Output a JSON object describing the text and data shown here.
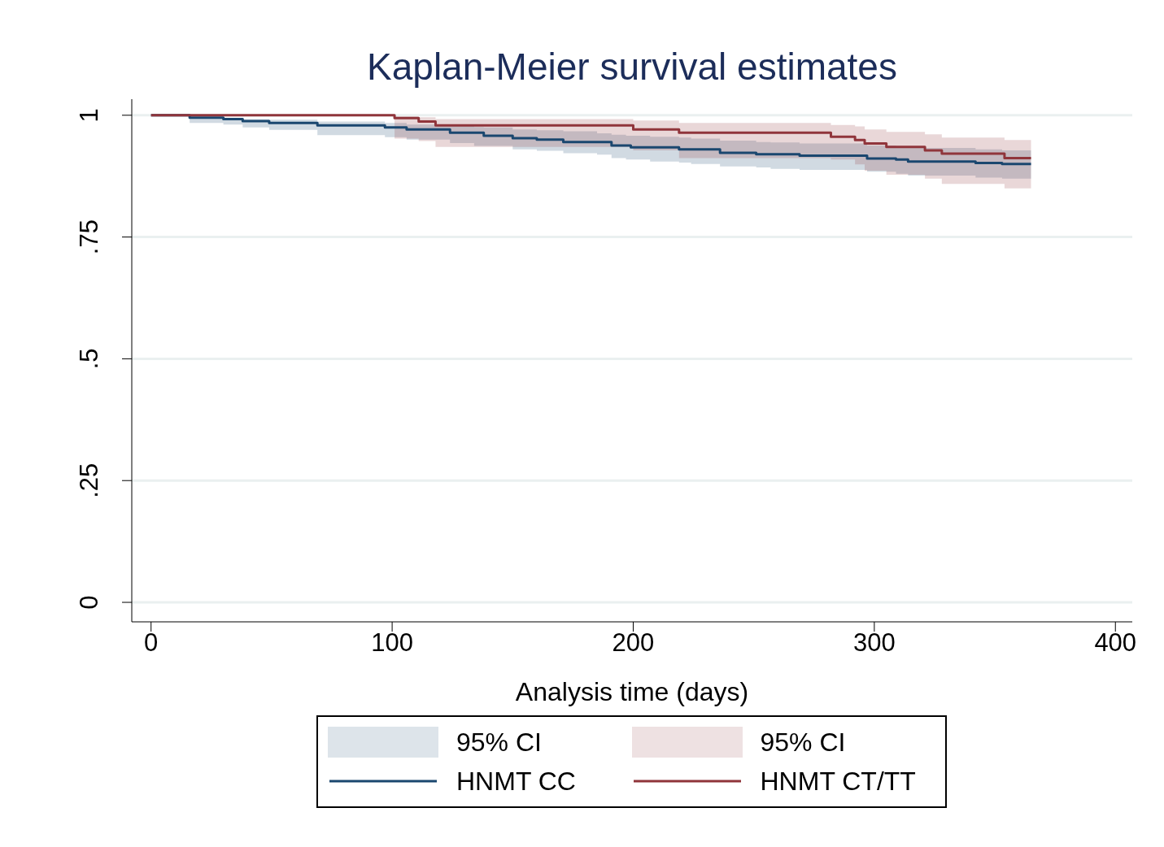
{
  "chart_data": {
    "type": "step",
    "title": "Kaplan-Meier survival estimates",
    "xlabel": "Analysis time (days)",
    "xlim": [
      -8,
      407
    ],
    "xticks": [
      0,
      100,
      200,
      300,
      400
    ],
    "ylim": [
      -0.04,
      1.033
    ],
    "yticks": [
      0,
      {
        "value": 0.25,
        "label": ".25"
      },
      {
        "value": 0.5,
        "label": ".5"
      },
      {
        "value": 0.75,
        "label": ".75"
      },
      1
    ],
    "grid": "y",
    "legend": "bottom",
    "annotations": [
      "95% CI",
      "95% CI"
    ],
    "series": [
      {
        "name": "HNMT CC",
        "color": "#1a476f",
        "x": [
          0,
          16,
          30,
          38,
          49,
          69,
          97,
          106,
          124,
          134,
          138,
          150,
          160,
          171,
          185,
          191,
          197,
          199,
          207,
          219,
          224,
          236,
          251,
          257,
          269,
          297,
          309,
          314,
          342,
          353,
          365
        ],
        "values": [
          1,
          0.995,
          0.992,
          0.988,
          0.984,
          0.979,
          0.975,
          0.971,
          0.964,
          0.964,
          0.958,
          0.953,
          0.95,
          0.945,
          0.945,
          0.938,
          0.938,
          0.934,
          0.934,
          0.93,
          0.93,
          0.923,
          0.92,
          0.92,
          0.917,
          0.911,
          0.909,
          0.905,
          0.902,
          0.9,
          0.9
        ],
        "lower": [
          null,
          0.984,
          0.981,
          0.975,
          0.97,
          0.959,
          0.955,
          0.95,
          0.943,
          0.937,
          0.937,
          0.93,
          0.927,
          0.922,
          0.919,
          0.912,
          0.909,
          0.909,
          0.905,
          0.903,
          0.9,
          0.895,
          0.893,
          0.89,
          0.888,
          0.884,
          0.88,
          0.876,
          0.872,
          0.87,
          0.87
        ],
        "upper": [
          null,
          1,
          0.994,
          0.992,
          0.991,
          0.987,
          0.984,
          0.981,
          0.978,
          0.976,
          0.975,
          0.971,
          0.969,
          0.967,
          0.963,
          0.96,
          0.958,
          0.958,
          0.956,
          0.954,
          0.952,
          0.948,
          0.945,
          0.944,
          0.942,
          0.938,
          0.936,
          0.933,
          0.93,
          0.928,
          0.928
        ]
      },
      {
        "name": "HNMT CT/TT",
        "color": "#90353b",
        "x": [
          0,
          101,
          111,
          118,
          200,
          219,
          282,
          292,
          296,
          305,
          321,
          328,
          354,
          365
        ],
        "values": [
          1,
          0.994,
          0.987,
          0.979,
          0.971,
          0.964,
          0.956,
          0.949,
          0.942,
          0.935,
          0.928,
          0.921,
          0.912,
          0.912
        ],
        "lower": [
          null,
          0.952,
          0.947,
          0.935,
          0.928,
          0.912,
          0.909,
          0.899,
          0.886,
          0.878,
          0.87,
          0.859,
          0.85,
          0.85
        ],
        "upper": [
          null,
          1,
          0.996,
          0.992,
          0.989,
          0.984,
          0.98,
          0.977,
          0.971,
          0.966,
          0.961,
          0.954,
          0.949,
          0.949
        ]
      }
    ]
  }
}
